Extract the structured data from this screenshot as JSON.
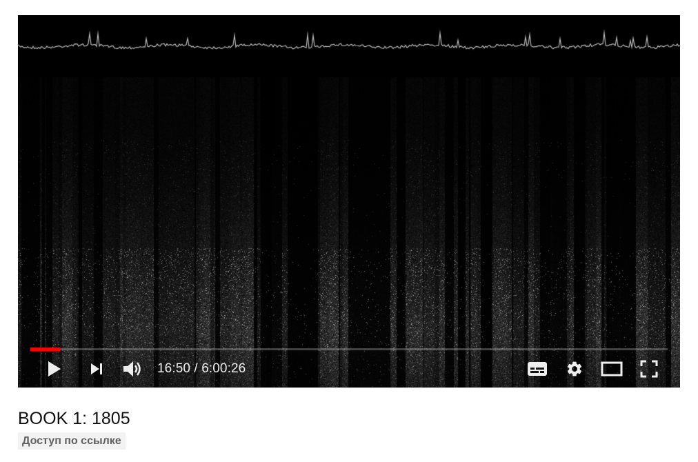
{
  "player": {
    "current_time": "16:50",
    "duration": "6:00:26",
    "separator": " / ",
    "progress_fraction": 0.047,
    "accent_color": "#ff0000",
    "controls": {
      "play": "play-icon",
      "next": "next-icon",
      "volume": "volume-icon",
      "subtitles": "subtitles-icon",
      "settings": "gear-icon",
      "theater": "theater-mode-icon",
      "fullscreen": "fullscreen-icon"
    }
  },
  "video": {
    "title": "BOOK 1: 1805",
    "visibility": "Доступ по ссылке"
  }
}
